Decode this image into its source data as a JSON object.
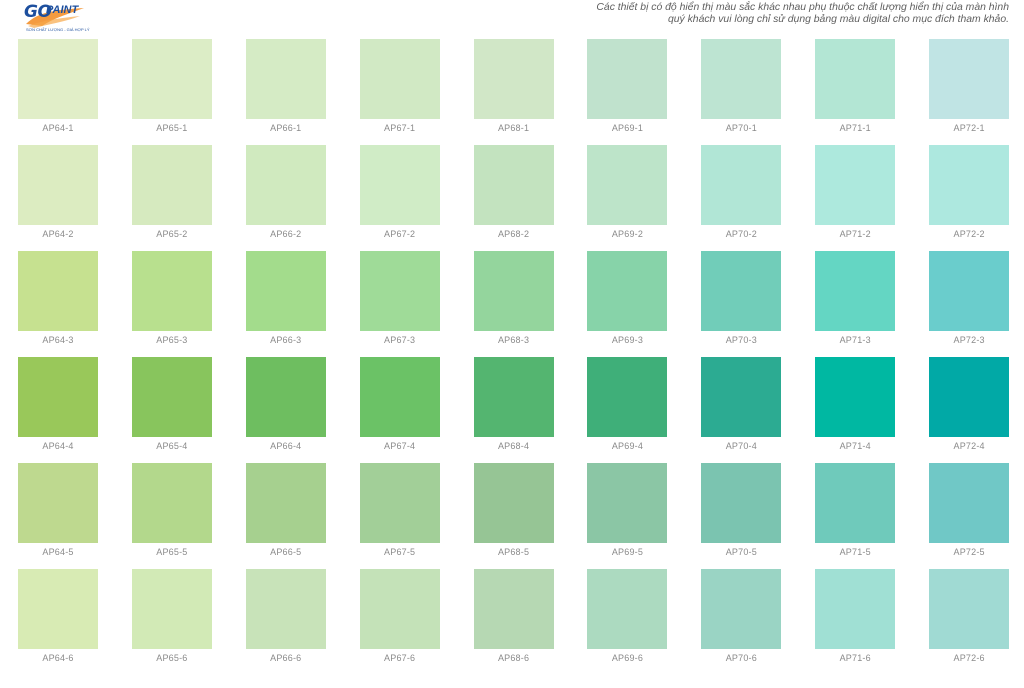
{
  "brand": {
    "logo_text_go": "GO",
    "logo_text_paint": "PAINT",
    "tagline": "SƠN CHẤT LƯỢNG - GIÁ HỢP LÝ",
    "primary_color": "#1d4f9e",
    "accent_color": "#f28a1e"
  },
  "notice": {
    "line1": "Các thiết bị có độ hiển thị màu sắc khác nhau phụ thuộc chất lượng hiển thị của màn hình",
    "line2": "quý khách vui lòng chỉ sử dụng bảng màu digital cho mục đích tham khảo."
  },
  "swatches": [
    {
      "code": "AP64-1",
      "color": "#e1eec8"
    },
    {
      "code": "AP65-1",
      "color": "#dcedc6"
    },
    {
      "code": "AP66-1",
      "color": "#d5ebc5"
    },
    {
      "code": "AP67-1",
      "color": "#d1e9c4"
    },
    {
      "code": "AP68-1",
      "color": "#d1e7c7"
    },
    {
      "code": "AP69-1",
      "color": "#c0e2cd"
    },
    {
      "code": "AP70-1",
      "color": "#bde4d2"
    },
    {
      "code": "AP71-1",
      "color": "#b3e6d4"
    },
    {
      "code": "AP72-1",
      "color": "#c0e4e4"
    },
    {
      "code": "AP64-2",
      "color": "#dcecc1"
    },
    {
      "code": "AP65-2",
      "color": "#d6eabf"
    },
    {
      "code": "AP66-2",
      "color": "#d0eabf"
    },
    {
      "code": "AP67-2",
      "color": "#d0ecc6"
    },
    {
      "code": "AP68-2",
      "color": "#c3e3bf"
    },
    {
      "code": "AP69-2",
      "color": "#bde4c9"
    },
    {
      "code": "AP70-2",
      "color": "#b1e6d6"
    },
    {
      "code": "AP71-2",
      "color": "#ade9dd"
    },
    {
      "code": "AP72-2",
      "color": "#ade8df"
    },
    {
      "code": "AP64-3",
      "color": "#c6e190"
    },
    {
      "code": "AP65-3",
      "color": "#b8e08e"
    },
    {
      "code": "AP66-3",
      "color": "#a3dc8c"
    },
    {
      "code": "AP67-3",
      "color": "#9fdb98"
    },
    {
      "code": "AP68-3",
      "color": "#94d59d"
    },
    {
      "code": "AP69-3",
      "color": "#87d3a9"
    },
    {
      "code": "AP70-3",
      "color": "#71cdb9"
    },
    {
      "code": "AP71-3",
      "color": "#64d6c3"
    },
    {
      "code": "AP72-3",
      "color": "#6acdcc"
    },
    {
      "code": "AP64-4",
      "color": "#99c85a"
    },
    {
      "code": "AP65-4",
      "color": "#88c55d"
    },
    {
      "code": "AP66-4",
      "color": "#6ebe60"
    },
    {
      "code": "AP67-4",
      "color": "#6bc266"
    },
    {
      "code": "AP68-4",
      "color": "#54b570"
    },
    {
      "code": "AP69-4",
      "color": "#3faf79"
    },
    {
      "code": "AP70-4",
      "color": "#2cab92"
    },
    {
      "code": "AP71-4",
      "color": "#00b8a2"
    },
    {
      "code": "AP72-4",
      "color": "#01a9a6"
    },
    {
      "code": "AP64-5",
      "color": "#bed98f"
    },
    {
      "code": "AP65-5",
      "color": "#b3d88c"
    },
    {
      "code": "AP66-5",
      "color": "#a6d08f"
    },
    {
      "code": "AP67-5",
      "color": "#a2cf98"
    },
    {
      "code": "AP68-5",
      "color": "#96c595"
    },
    {
      "code": "AP69-5",
      "color": "#8bc6a5"
    },
    {
      "code": "AP70-5",
      "color": "#7bc4b0"
    },
    {
      "code": "AP71-5",
      "color": "#6fcabb"
    },
    {
      "code": "AP72-5",
      "color": "#70c8c6"
    },
    {
      "code": "AP64-6",
      "color": "#d8ebb4"
    },
    {
      "code": "AP65-6",
      "color": "#d2eab6"
    },
    {
      "code": "AP66-6",
      "color": "#c8e3b9"
    },
    {
      "code": "AP67-6",
      "color": "#c4e2b8"
    },
    {
      "code": "AP68-6",
      "color": "#b6d8b3"
    },
    {
      "code": "AP69-6",
      "color": "#acdac0"
    },
    {
      "code": "AP70-6",
      "color": "#9ad4c4"
    },
    {
      "code": "AP71-6",
      "color": "#a0e0d4"
    },
    {
      "code": "AP72-6",
      "color": "#a0dad3"
    }
  ]
}
